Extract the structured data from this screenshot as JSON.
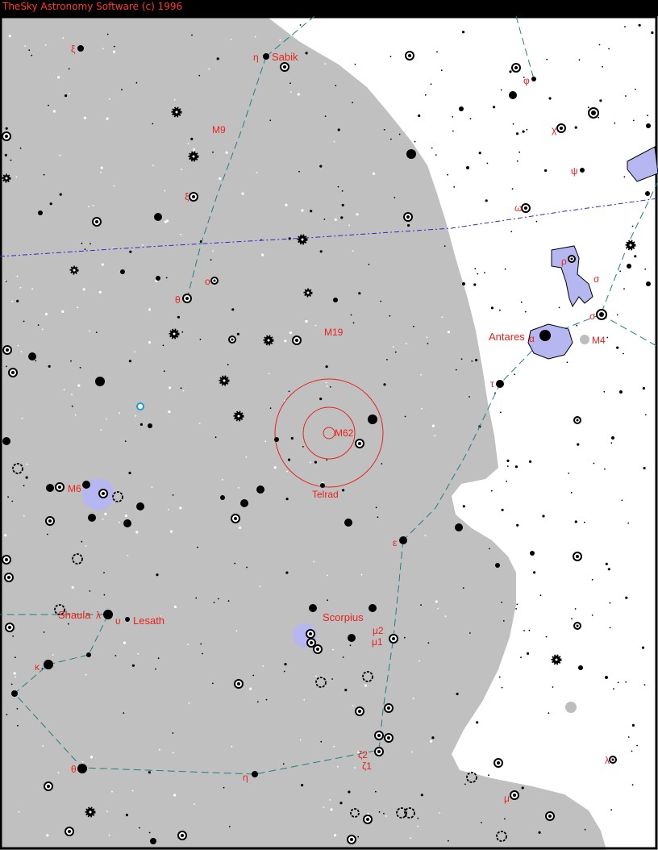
{
  "window": {
    "title": "TheSky Astronomy Software (c) 1996"
  },
  "colors": {
    "milkyway": "#c0c0c0",
    "sky": "#ffffff",
    "nebula": "#b6b6f0",
    "label": "#e8231c",
    "constellation_line": "#1f8080",
    "ecliptic": "#2a2ad6",
    "telrad": "#e8231c"
  },
  "labels": {
    "xi_top": "ξ",
    "eta": "η",
    "sabik": "Sabik",
    "phi": "φ",
    "m9": "M9",
    "chi": "χ",
    "psi": "ψ",
    "xi_mid": "ξ",
    "omega": "ω",
    "rho": "ρ",
    "sigma": "σ",
    "omicron": "o",
    "theta_oph": "θ",
    "m19": "M19",
    "antares": "Antares",
    "alpha": "α",
    "m4": "M4",
    "tau": "τ",
    "m62": "M62",
    "m6": "M6",
    "telrad": "Telrad",
    "epsilon": "ε",
    "shaula": "Shaula",
    "lambda_sco": "λ",
    "upsilon": "υ",
    "lesath": "Lesath",
    "scorpius": "Scorpius",
    "mu2": "μ2",
    "mu1": "μ1",
    "kappa": "κ",
    "zeta2": "ζ2",
    "zeta1": "ζ1",
    "theta_sco": "θ",
    "eta_sco": "η",
    "lambda_lib": "λ",
    "mu_lib": "μ"
  }
}
